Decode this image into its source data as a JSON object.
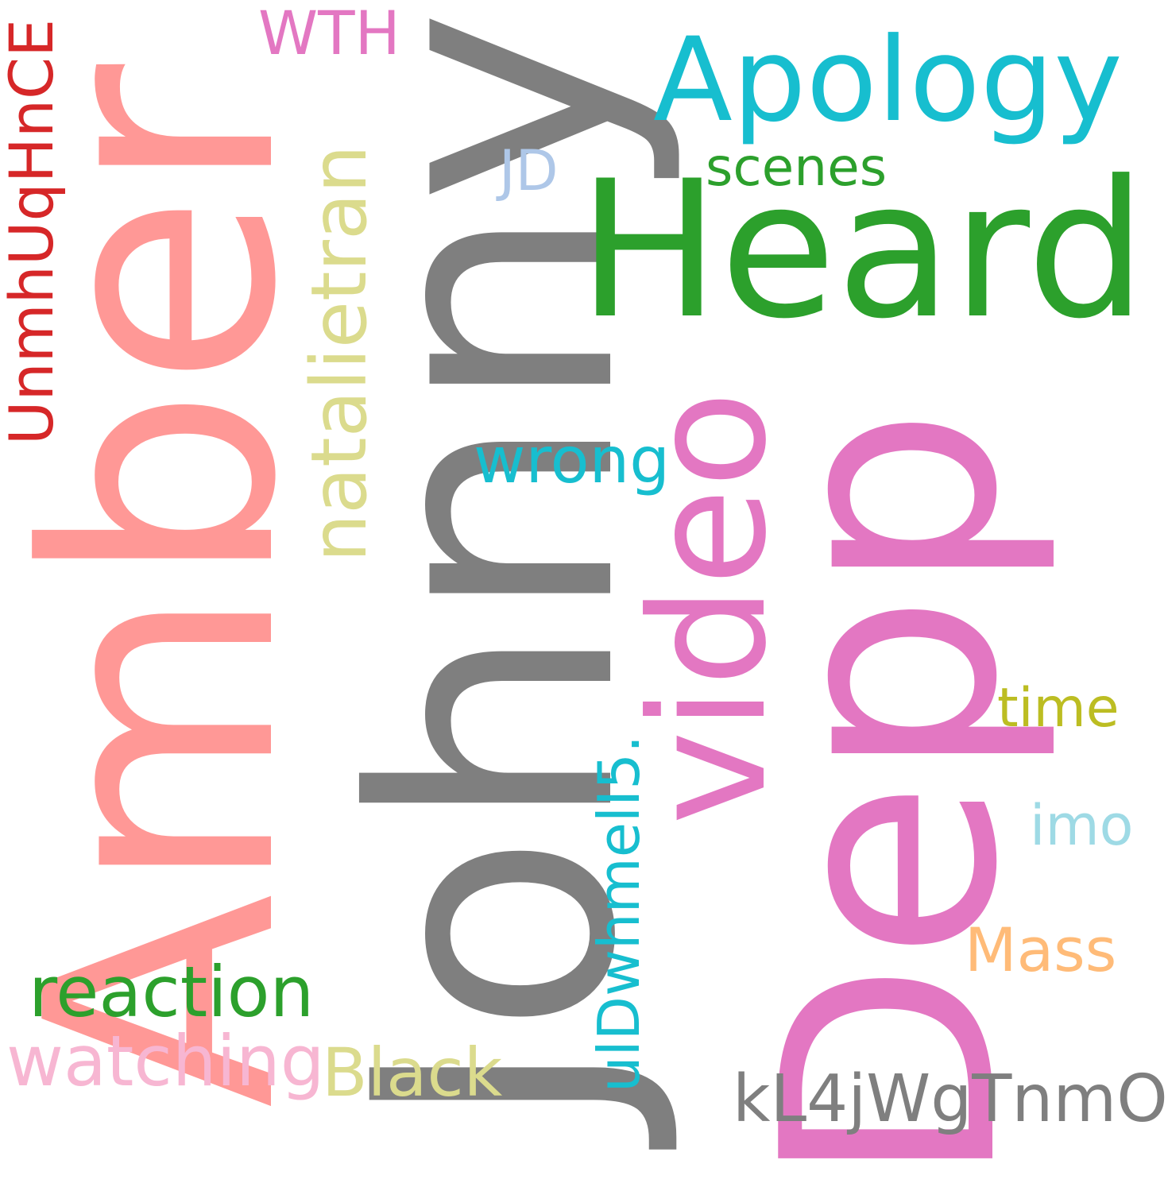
{
  "word_cloud": {
    "words": [
      {
        "text": "Johnny",
        "color": "#7f7f7f",
        "orientation": "vertical"
      },
      {
        "text": "Amber",
        "color": "#ff9896",
        "orientation": "vertical"
      },
      {
        "text": "Depp",
        "color": "#e377c2",
        "orientation": "vertical"
      },
      {
        "text": "Heard",
        "color": "#2ca02c",
        "orientation": "horizontal"
      },
      {
        "text": "video",
        "color": "#e377c2",
        "orientation": "vertical"
      },
      {
        "text": "Apology",
        "color": "#17becf",
        "orientation": "horizontal"
      },
      {
        "text": "natalietran",
        "color": "#dbdb8d",
        "orientation": "vertical"
      },
      {
        "text": "reaction",
        "color": "#2ca02c",
        "orientation": "horizontal"
      },
      {
        "text": "watching",
        "color": "#f7b6d2",
        "orientation": "horizontal"
      },
      {
        "text": "Black",
        "color": "#dbdb8d",
        "orientation": "horizontal"
      },
      {
        "text": "kL4jWgTnmO",
        "color": "#7f7f7f",
        "orientation": "horizontal"
      },
      {
        "text": "wrong",
        "color": "#17becf",
        "orientation": "horizontal"
      },
      {
        "text": "UnmhUqHnCE",
        "color": "#d62728",
        "orientation": "vertical"
      },
      {
        "text": "ulDwhmelI5.",
        "color": "#17becf",
        "orientation": "vertical"
      },
      {
        "text": "WTH",
        "color": "#e377c2",
        "orientation": "horizontal"
      },
      {
        "text": "Mass",
        "color": "#ffbb78",
        "orientation": "horizontal"
      },
      {
        "text": "JD",
        "color": "#aec7e8",
        "orientation": "horizontal"
      },
      {
        "text": "imo",
        "color": "#9edae5",
        "orientation": "horizontal"
      },
      {
        "text": "time",
        "color": "#bcbd22",
        "orientation": "horizontal"
      },
      {
        "text": "scenes",
        "color": "#2ca02c",
        "orientation": "horizontal"
      }
    ]
  }
}
